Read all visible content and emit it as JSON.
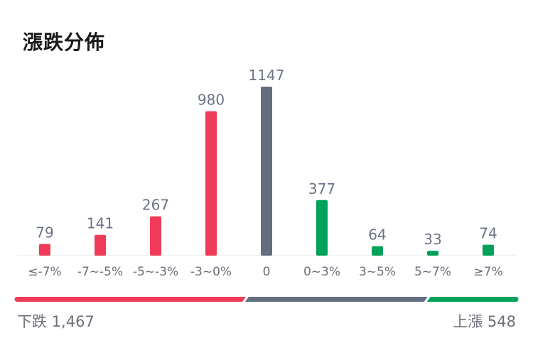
{
  "header": {
    "title": "漲跌分佈"
  },
  "colors": {
    "down": "#ef3b56",
    "flat": "#646e80",
    "up": "#00a25a",
    "value_text": "#6b7388",
    "tick_text": "#6b6f7a",
    "baseline": "#e5e7eb"
  },
  "chart_data": {
    "type": "bar",
    "title": "漲跌分佈",
    "categories": [
      "≤-7%",
      "-7~-5%",
      "-5~-3%",
      "-3~0%",
      "0",
      "0~3%",
      "3~5%",
      "5~7%",
      "≥7%"
    ],
    "values": [
      79,
      141,
      267,
      980,
      1147,
      377,
      64,
      33,
      74
    ],
    "value_labels": [
      "79",
      "141",
      "267",
      "980",
      "1147",
      "377",
      "64",
      "33",
      "74"
    ],
    "bar_groups": [
      "down",
      "down",
      "down",
      "down",
      "flat",
      "up",
      "up",
      "up",
      "up"
    ],
    "ylim": [
      0,
      1147
    ],
    "grid": false,
    "summary_bar": {
      "down": 1467,
      "flat": 1147,
      "up": 548
    }
  },
  "footer": {
    "down_label": "下跌 1,467",
    "up_label": "上漲 548"
  }
}
